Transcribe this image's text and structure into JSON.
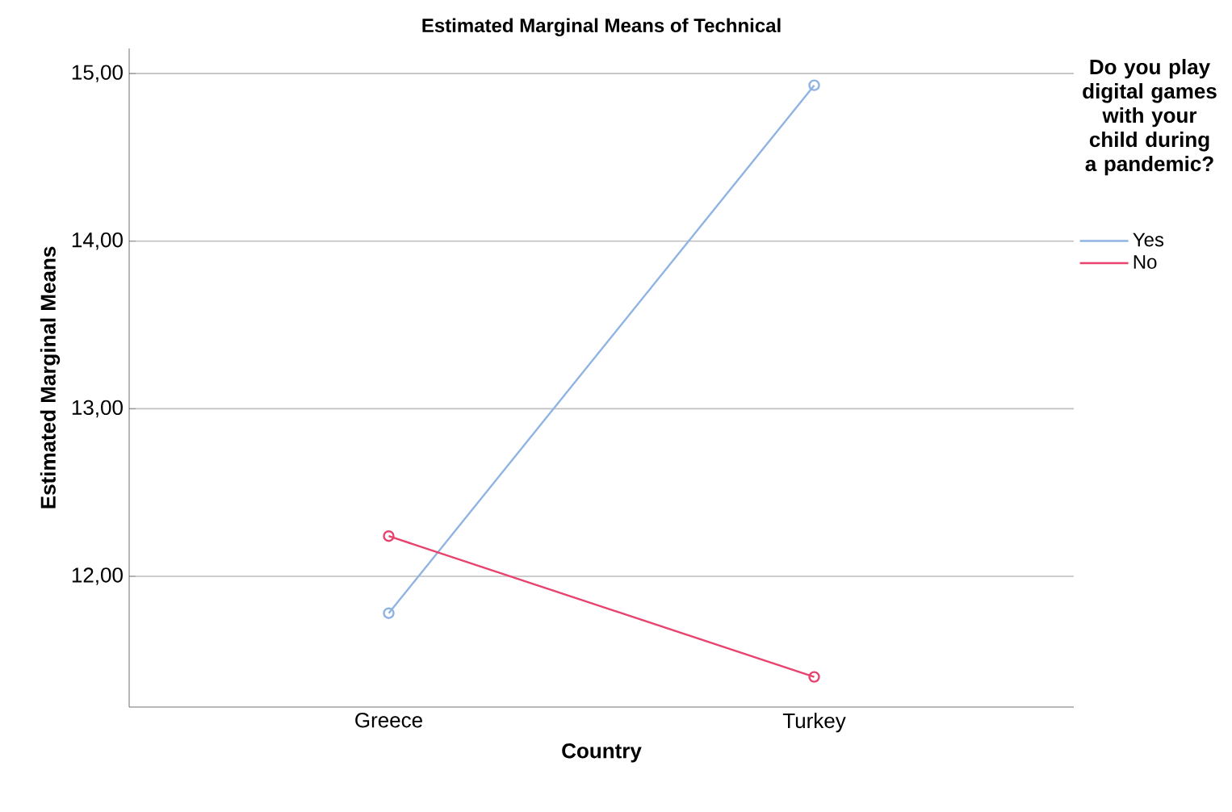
{
  "chart_data": {
    "type": "line",
    "title": "Estimated Marginal Means of Technical",
    "xlabel": "Country",
    "ylabel": "Estimated Marginal Means",
    "legend_title": "Do you play digital games with your child during a pandemic?",
    "categories": [
      "Greece",
      "Turkey"
    ],
    "series": [
      {
        "name": "Yes",
        "color": "#8fb4e3",
        "values": [
          11.78,
          14.93
        ]
      },
      {
        "name": "No",
        "color": "#e8436e",
        "values": [
          12.24,
          11.4
        ]
      }
    ],
    "ylim": [
      11.22,
      15.15
    ],
    "yticks": [
      {
        "value": 12,
        "label": "12,00"
      },
      {
        "value": 13,
        "label": "13,00"
      },
      {
        "value": 14,
        "label": "14,00"
      },
      {
        "value": 15,
        "label": "15,00"
      }
    ],
    "grid": "y",
    "legend": "right",
    "marker": "circle",
    "line_style": "solid"
  }
}
